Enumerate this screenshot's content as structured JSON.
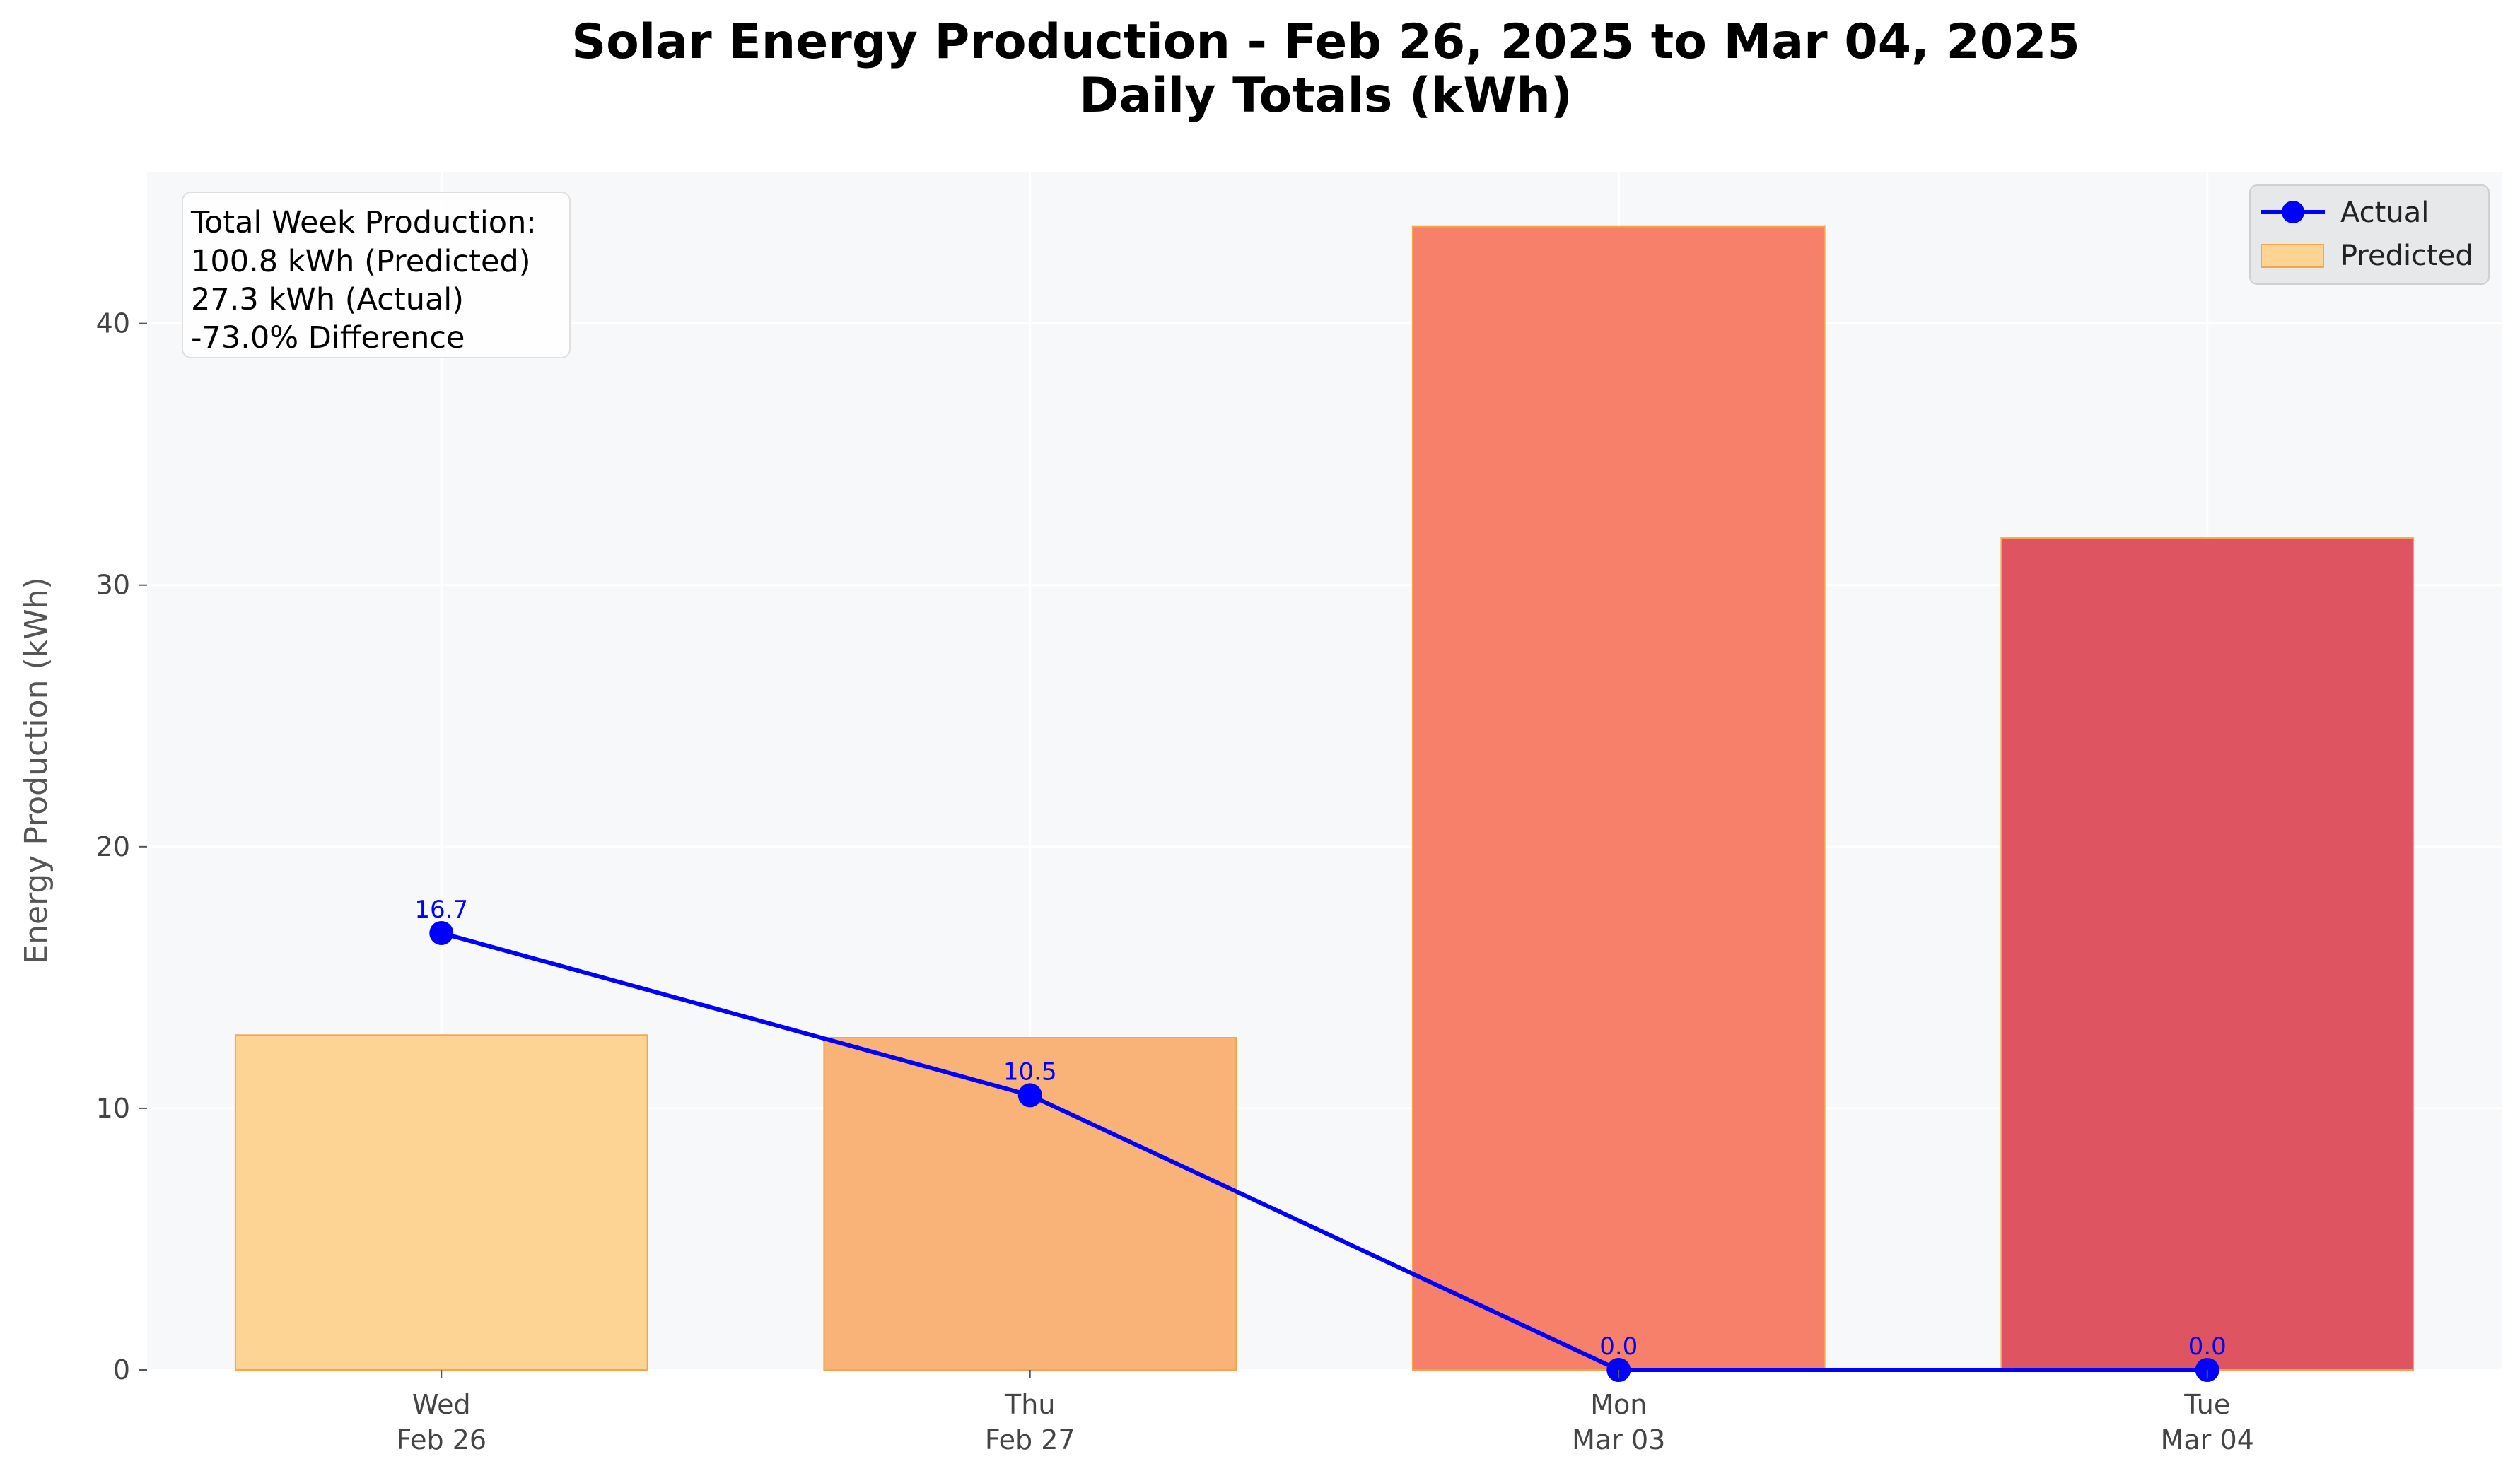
{
  "chart_data": {
    "type": "bar",
    "title": "Solar Energy Production - Feb 26, 2025 to Mar 04, 2025",
    "subtitle": "Daily Totals (kWh)",
    "xlabel": "",
    "ylabel": "Energy Production (kWh)",
    "ylim": [
      0,
      45.8
    ],
    "yticks": [
      0,
      10,
      20,
      30,
      40
    ],
    "grid": true,
    "legend_position": "top-right",
    "categories": [
      {
        "day": "Wed",
        "date": "Feb 26"
      },
      {
        "day": "Thu",
        "date": "Feb 27"
      },
      {
        "day": "Mon",
        "date": "Mar 03"
      },
      {
        "day": "Tue",
        "date": "Mar 04"
      }
    ],
    "series": [
      {
        "name": "Actual",
        "type": "line",
        "color": "#0000ff",
        "values": [
          16.7,
          10.5,
          0.0,
          0.0
        ],
        "labels": [
          "16.7",
          "10.5",
          "0.0",
          "0.0"
        ]
      },
      {
        "name": "Predicted",
        "type": "bar",
        "values": [
          12.8,
          12.7,
          43.7,
          31.8
        ],
        "colors": [
          "#fdd493",
          "#f9b277",
          "#f7806a",
          "#de5561"
        ],
        "edge_color": "#f5a54a"
      }
    ],
    "annotation": {
      "lines": [
        "Total Week Production:",
        "100.8 kWh (Predicted)",
        "27.3 kWh (Actual)",
        "-73.0% Difference"
      ]
    }
  }
}
